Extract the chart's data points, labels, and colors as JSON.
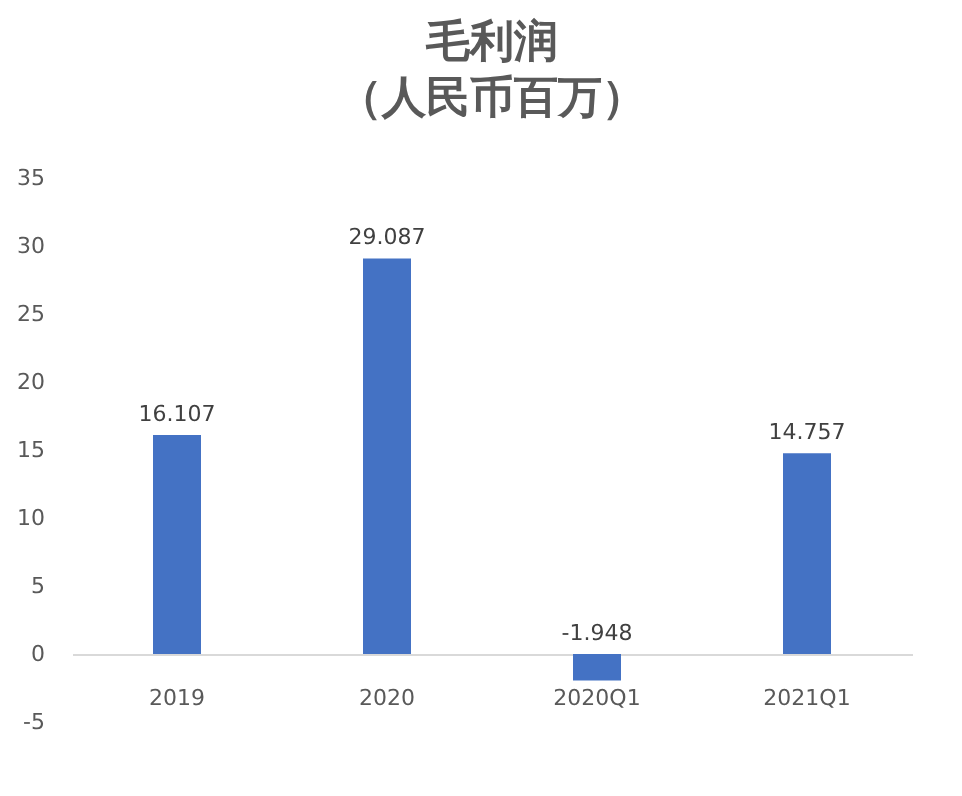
{
  "chart_data": {
    "type": "bar",
    "title": "毛利润",
    "subtitle": "（人民币百万）",
    "categories": [
      "2019",
      "2020",
      "2020Q1",
      "2021Q1"
    ],
    "values": [
      16.107,
      29.087,
      -1.948,
      14.757
    ],
    "color": "#4472c4",
    "ylim": [
      -5,
      35
    ],
    "yticks": [
      -5,
      0,
      5,
      10,
      15,
      20,
      25,
      30,
      35
    ],
    "data_labels": true
  }
}
